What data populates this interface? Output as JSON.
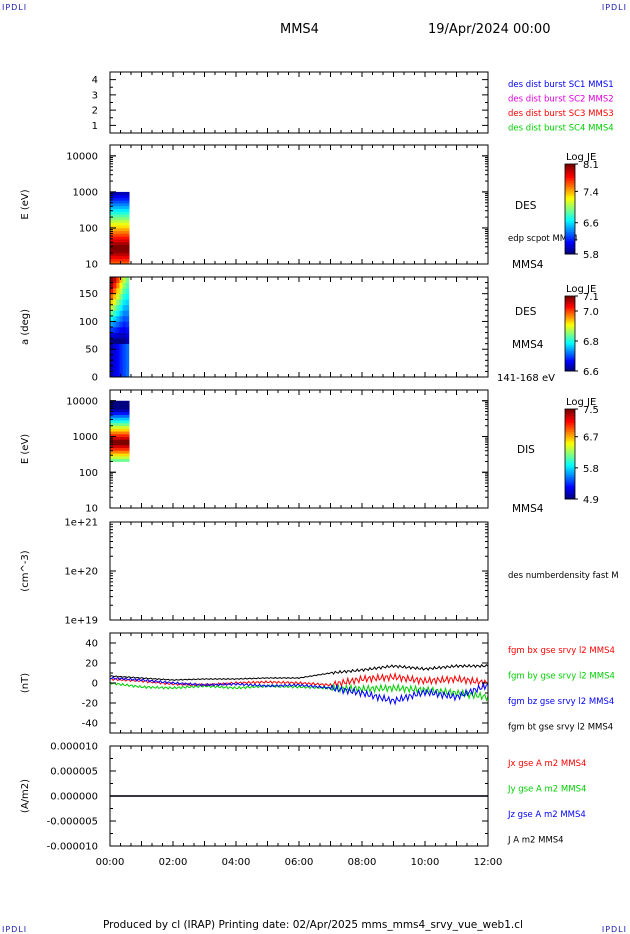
{
  "corner_labels": {
    "top_left": "IPDLI",
    "top_right": "IPDLI",
    "bottom_left": "IPDLI",
    "bottom_right": "IPDLI"
  },
  "header": {
    "spacecraft": "MMS4",
    "date": "19/Apr/2024 00:00"
  },
  "footer": "Produced by cl (IRAP)   Printing date: 02/Apr/2025   mms_mms4_srvy_vue_web1.cl",
  "colors": {
    "black": "#000000",
    "blue": "#0000ff",
    "magenta": "#e000e0",
    "red": "#ff0000",
    "green": "#00d000"
  },
  "chart_data": [
    {
      "type": "scatter",
      "ylim": [
        0.5,
        4.5
      ],
      "yticks": [
        "1",
        "2",
        "3",
        "4"
      ],
      "legend": [
        {
          "label": "des dist burst SC1 MMS1",
          "color": "#0000ff"
        },
        {
          "label": "des dist burst SC2 MMS2",
          "color": "#e000e0"
        },
        {
          "label": "des dist burst SC3 MMS3",
          "color": "#ff0000"
        },
        {
          "label": "des dist burst SC4 MMS4",
          "color": "#00d000"
        }
      ]
    },
    {
      "type": "heatmap",
      "ylabel": "E (eV)",
      "yscale": "log",
      "ylim": [
        10,
        20000
      ],
      "yticks": [
        "10",
        "100",
        "1000",
        "10000"
      ],
      "species": "DES",
      "label2": "edp scpot MMS4",
      "label3": "MMS4",
      "colorbar": {
        "title": "Log JE",
        "ticks": [
          "5.8",
          "6.6",
          "7.4",
          "8.1"
        ],
        "min": 5.8,
        "max": 8.1
      },
      "data_time_range": [
        "00:00",
        "00:37"
      ],
      "energy_range": [
        10,
        1000
      ]
    },
    {
      "type": "heatmap",
      "ylabel": "a (deg)",
      "ylim": [
        0,
        180
      ],
      "yticks": [
        "0",
        "50",
        "100",
        "150"
      ],
      "species": "DES",
      "label2": "MMS4",
      "label3": "141-168 eV",
      "colorbar": {
        "title": "Log JE",
        "ticks": [
          "6.6",
          "6.8",
          "7.0",
          "7.1"
        ],
        "min": 6.6,
        "max": 7.1
      },
      "data_time_range": [
        "00:00",
        "00:37"
      ]
    },
    {
      "type": "heatmap",
      "ylabel": "E (eV)",
      "yscale": "log",
      "ylim": [
        10,
        20000
      ],
      "yticks": [
        "10",
        "100",
        "1000",
        "10000"
      ],
      "species": "DIS",
      "label2": "MMS4",
      "colorbar": {
        "title": "Log JE",
        "ticks": [
          "4.9",
          "5.8",
          "6.7",
          "7.5"
        ],
        "min": 4.9,
        "max": 7.5
      },
      "data_time_range": [
        "00:00",
        "00:37"
      ],
      "energy_range": [
        200,
        10000
      ]
    },
    {
      "type": "line",
      "ylabel": "(cm^-3)",
      "yscale": "log",
      "yticks": [
        "1e+19",
        "1e+20",
        "1e+21"
      ],
      "legend": [
        {
          "label": "des numberdensity fast M",
          "color": "#000000"
        }
      ]
    },
    {
      "type": "line",
      "ylabel": "(nT)",
      "ylim": [
        -50,
        50
      ],
      "yticks": [
        "-40",
        "-20",
        "0",
        "20",
        "40"
      ],
      "x": [
        "00:00",
        "01:00",
        "02:00",
        "03:00",
        "04:00",
        "05:00",
        "06:00",
        "07:00",
        "08:00",
        "09:00",
        "10:00",
        "11:00",
        "12:00"
      ],
      "series": [
        {
          "name": "fgm bx gse srvy l2 MMS4",
          "color": "#ff0000",
          "values": [
            4,
            2,
            -1,
            -2,
            0,
            1,
            0,
            -2,
            4,
            6,
            2,
            4,
            0
          ]
        },
        {
          "name": "fgm by gse srvy l2 MMS4",
          "color": "#00d000",
          "values": [
            0,
            -4,
            -5,
            -3,
            -5,
            -3,
            -4,
            -5,
            -6,
            -5,
            -7,
            -10,
            -14
          ]
        },
        {
          "name": "fgm bz gse srvy l2 MMS4",
          "color": "#0000ff",
          "values": [
            5,
            3,
            0,
            -2,
            -1,
            -3,
            -2,
            -5,
            -10,
            -18,
            -9,
            -14,
            -2
          ]
        },
        {
          "name": "fgm bt gse srvy l2 MMS4",
          "color": "#000000",
          "values": [
            7,
            5,
            3,
            4,
            4,
            5,
            5,
            10,
            13,
            17,
            14,
            17,
            17
          ]
        }
      ]
    },
    {
      "type": "line",
      "ylabel": "(A/m2)",
      "ylim": [
        -1e-05,
        1e-05
      ],
      "yticks": [
        "-0.000010",
        "-0.000005",
        "0.000000",
        "0.000005",
        "0.000010"
      ],
      "xlabel_ticks": [
        "00:00",
        "02:00",
        "04:00",
        "06:00",
        "08:00",
        "10:00",
        "12:00"
      ],
      "series": [
        {
          "name": "Jx gse A m2 MMS4",
          "color": "#ff0000",
          "values": [
            0,
            0,
            0,
            0,
            0,
            0,
            0
          ]
        },
        {
          "name": "Jy gse A m2 MMS4",
          "color": "#00d000",
          "values": [
            0,
            0,
            0,
            0,
            0,
            0,
            0
          ]
        },
        {
          "name": "Jz gse A m2 MMS4",
          "color": "#0000ff",
          "values": [
            0,
            0,
            0,
            0,
            0,
            0,
            0
          ]
        },
        {
          "name": "J A m2 MMS4",
          "color": "#000000",
          "values": [
            0,
            0,
            0,
            0,
            0,
            0,
            0
          ]
        }
      ]
    }
  ]
}
